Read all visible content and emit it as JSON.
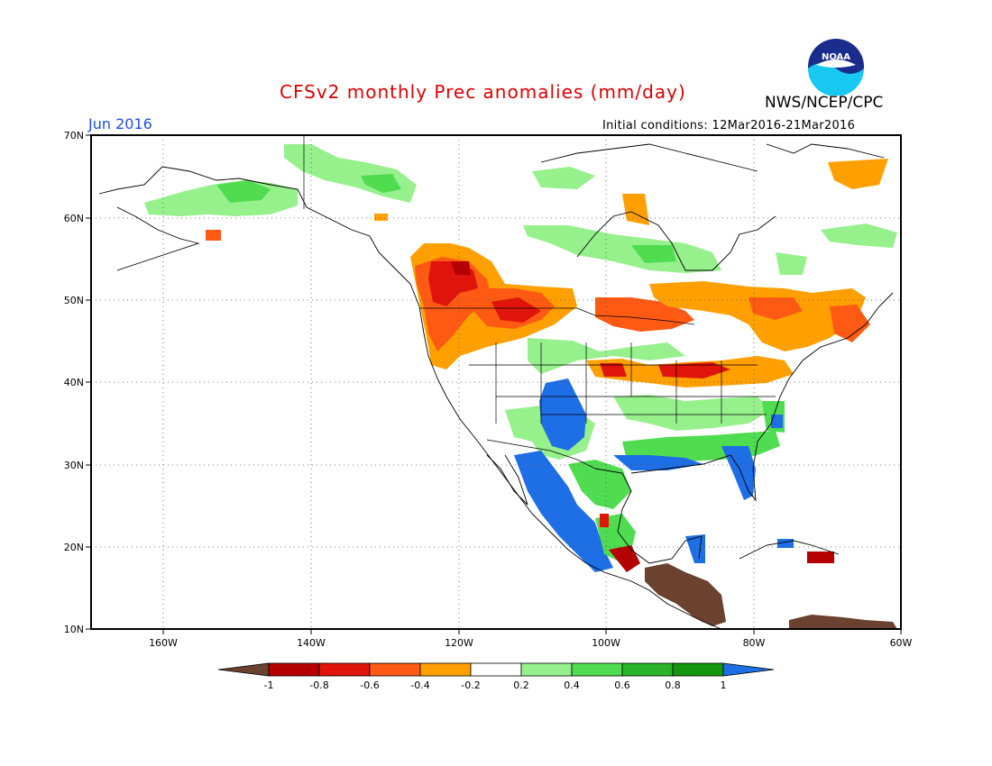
{
  "header": {
    "title": "CFSv2 monthly Prec anomalies (mm/day)",
    "agency": "NWS/NCEP/CPC",
    "month": "Jun 2016",
    "initial_conditions": "Initial conditions: 12Mar2016-21Mar2016",
    "logo_text": "NOAA"
  },
  "axes": {
    "lat_labels": [
      "70N",
      "60N",
      "50N",
      "40N",
      "30N",
      "20N",
      "10N"
    ],
    "lon_labels": [
      "160W",
      "140W",
      "120W",
      "100W",
      "80W",
      "60W"
    ]
  },
  "colorbar": {
    "labels": [
      "-1",
      "-0.8",
      "-0.6",
      "-0.4",
      "-0.2",
      "0.2",
      "0.4",
      "0.6",
      "0.8",
      "1"
    ],
    "colors": [
      "#6b4130",
      "#b40000",
      "#e0140a",
      "#ff5a14",
      "#ffa000",
      "#ffffff",
      "#96f08c",
      "#50dc50",
      "#28b428",
      "#14960f",
      "#1e6ee6"
    ]
  },
  "map_regions": [
    {
      "name": "Pacific Northwest dry anomaly",
      "color": "#e0140a"
    },
    {
      "name": "Northern Plains dry anomaly",
      "color": "#ff5a14"
    },
    {
      "name": "Great Lakes / Ohio Valley dry anomaly",
      "color": "#e0140a"
    },
    {
      "name": "Southwest wet anomaly",
      "color": "#1e6ee6"
    },
    {
      "name": "Gulf Coast wet anomaly",
      "color": "#50dc50"
    },
    {
      "name": "Central America dry anomaly",
      "color": "#6b4130"
    }
  ]
}
